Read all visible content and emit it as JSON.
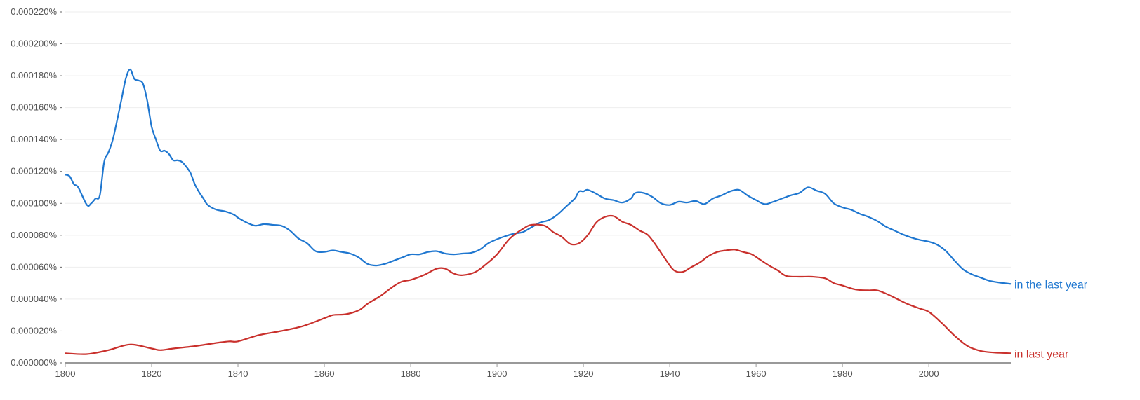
{
  "chart_data": {
    "type": "line",
    "title": "",
    "xlabel": "",
    "ylabel": "",
    "xlim": [
      1800,
      2019
    ],
    "ylim": [
      0,
      0.00022
    ],
    "grid": true,
    "legend_placement": "right, at line ends",
    "x_ticks": [
      "1800",
      "1820",
      "1840",
      "1860",
      "1880",
      "1900",
      "1920",
      "1940",
      "1960",
      "1980",
      "2000"
    ],
    "y_ticks": [
      "0.000000%",
      "0.000020%",
      "0.000040%",
      "0.000060%",
      "0.000080%",
      "0.000100%",
      "0.000120%",
      "0.000140%",
      "0.000160%",
      "0.000180%",
      "0.000200%",
      "0.000220%"
    ],
    "series": [
      {
        "name": "in the last year",
        "color": "#1f77d0",
        "points": [
          [
            1800,
            0.000118
          ],
          [
            1801,
            0.000117
          ],
          [
            1802,
            0.000112
          ],
          [
            1803,
            0.00011
          ],
          [
            1805,
            9.9e-05
          ],
          [
            1806,
            0.0001
          ],
          [
            1807,
            0.000103
          ],
          [
            1808,
            0.000105
          ],
          [
            1809,
            0.000126
          ],
          [
            1810,
            0.000132
          ],
          [
            1811,
            0.00014
          ],
          [
            1812,
            0.000152
          ],
          [
            1813,
            0.000165
          ],
          [
            1814,
            0.000178
          ],
          [
            1815,
            0.000184
          ],
          [
            1816,
            0.000178
          ],
          [
            1817,
            0.000177
          ],
          [
            1818,
            0.000175
          ],
          [
            1819,
            0.000164
          ],
          [
            1820,
            0.000148
          ],
          [
            1821,
            0.00014
          ],
          [
            1822,
            0.000133
          ],
          [
            1823,
            0.000133
          ],
          [
            1824,
            0.000131
          ],
          [
            1825,
            0.000127
          ],
          [
            1826,
            0.000127
          ],
          [
            1827,
            0.000126
          ],
          [
            1828,
            0.000123
          ],
          [
            1829,
            0.000119
          ],
          [
            1830,
            0.000112
          ],
          [
            1831,
            0.000107
          ],
          [
            1832,
            0.000103
          ],
          [
            1833,
            9.9e-05
          ],
          [
            1835,
            9.6e-05
          ],
          [
            1837,
            9.5e-05
          ],
          [
            1839,
            9.3e-05
          ],
          [
            1840,
            9.1e-05
          ],
          [
            1842,
            8.8e-05
          ],
          [
            1844,
            8.6e-05
          ],
          [
            1846,
            8.7e-05
          ],
          [
            1848,
            8.65e-05
          ],
          [
            1850,
            8.6e-05
          ],
          [
            1852,
            8.3e-05
          ],
          [
            1854,
            7.8e-05
          ],
          [
            1856,
            7.5e-05
          ],
          [
            1858,
            7e-05
          ],
          [
            1860,
            6.95e-05
          ],
          [
            1862,
            7.05e-05
          ],
          [
            1864,
            6.95e-05
          ],
          [
            1866,
            6.85e-05
          ],
          [
            1868,
            6.6e-05
          ],
          [
            1870,
            6.2e-05
          ],
          [
            1872,
            6.1e-05
          ],
          [
            1874,
            6.2e-05
          ],
          [
            1876,
            6.4e-05
          ],
          [
            1878,
            6.6e-05
          ],
          [
            1880,
            6.8e-05
          ],
          [
            1882,
            6.8e-05
          ],
          [
            1884,
            6.95e-05
          ],
          [
            1886,
            7e-05
          ],
          [
            1888,
            6.85e-05
          ],
          [
            1890,
            6.8e-05
          ],
          [
            1892,
            6.85e-05
          ],
          [
            1894,
            6.9e-05
          ],
          [
            1896,
            7.1e-05
          ],
          [
            1898,
            7.5e-05
          ],
          [
            1900,
            7.75e-05
          ],
          [
            1902,
            7.95e-05
          ],
          [
            1904,
            8.1e-05
          ],
          [
            1906,
            8.2e-05
          ],
          [
            1908,
            8.5e-05
          ],
          [
            1910,
            8.8e-05
          ],
          [
            1912,
            8.95e-05
          ],
          [
            1914,
            9.3e-05
          ],
          [
            1916,
            9.8e-05
          ],
          [
            1918,
            0.000103
          ],
          [
            1919,
            0.0001075
          ],
          [
            1920,
            0.0001075
          ],
          [
            1921,
            0.0001085
          ],
          [
            1923,
            0.000106
          ],
          [
            1925,
            0.000103
          ],
          [
            1927,
            0.000102
          ],
          [
            1929,
            0.0001005
          ],
          [
            1931,
            0.000103
          ],
          [
            1932,
            0.0001065
          ],
          [
            1934,
            0.0001065
          ],
          [
            1936,
            0.000104
          ],
          [
            1938,
            0.0001
          ],
          [
            1940,
            9.9e-05
          ],
          [
            1942,
            0.000101
          ],
          [
            1944,
            0.0001005
          ],
          [
            1946,
            0.0001015
          ],
          [
            1948,
            9.95e-05
          ],
          [
            1950,
            0.000103
          ],
          [
            1952,
            0.000105
          ],
          [
            1954,
            0.0001075
          ],
          [
            1956,
            0.0001085
          ],
          [
            1958,
            0.000105
          ],
          [
            1960,
            0.000102
          ],
          [
            1962,
            9.95e-05
          ],
          [
            1964,
            0.000101
          ],
          [
            1966,
            0.000103
          ],
          [
            1968,
            0.000105
          ],
          [
            1970,
            0.0001065
          ],
          [
            1972,
            0.00011
          ],
          [
            1974,
            0.000108
          ],
          [
            1976,
            0.000106
          ],
          [
            1978,
            0.0001
          ],
          [
            1980,
            9.75e-05
          ],
          [
            1982,
            9.6e-05
          ],
          [
            1984,
            9.35e-05
          ],
          [
            1986,
            9.15e-05
          ],
          [
            1988,
            8.9e-05
          ],
          [
            1990,
            8.55e-05
          ],
          [
            1992,
            8.3e-05
          ],
          [
            1994,
            8.05e-05
          ],
          [
            1996,
            7.85e-05
          ],
          [
            1998,
            7.7e-05
          ],
          [
            2000,
            7.6e-05
          ],
          [
            2002,
            7.4e-05
          ],
          [
            2004,
            7e-05
          ],
          [
            2006,
            6.4e-05
          ],
          [
            2008,
            5.85e-05
          ],
          [
            2010,
            5.55e-05
          ],
          [
            2012,
            5.35e-05
          ],
          [
            2014,
            5.15e-05
          ],
          [
            2016,
            5.05e-05
          ],
          [
            2019,
            4.95e-05
          ]
        ]
      },
      {
        "name": "in last year",
        "color": "#c9302c",
        "points": [
          [
            1800,
            6e-06
          ],
          [
            1805,
            5.5e-06
          ],
          [
            1810,
            8e-06
          ],
          [
            1815,
            1.15e-05
          ],
          [
            1820,
            9e-06
          ],
          [
            1822,
            8e-06
          ],
          [
            1825,
            9e-06
          ],
          [
            1830,
            1.05e-05
          ],
          [
            1835,
            1.25e-05
          ],
          [
            1838,
            1.35e-05
          ],
          [
            1840,
            1.35e-05
          ],
          [
            1845,
            1.75e-05
          ],
          [
            1850,
            2e-05
          ],
          [
            1855,
            2.3e-05
          ],
          [
            1860,
            2.8e-05
          ],
          [
            1862,
            3e-05
          ],
          [
            1865,
            3.05e-05
          ],
          [
            1868,
            3.3e-05
          ],
          [
            1870,
            3.7e-05
          ],
          [
            1873,
            4.2e-05
          ],
          [
            1876,
            4.8e-05
          ],
          [
            1878,
            5.1e-05
          ],
          [
            1880,
            5.2e-05
          ],
          [
            1883,
            5.5e-05
          ],
          [
            1886,
            5.9e-05
          ],
          [
            1888,
            5.9e-05
          ],
          [
            1890,
            5.6e-05
          ],
          [
            1892,
            5.5e-05
          ],
          [
            1895,
            5.7e-05
          ],
          [
            1898,
            6.3e-05
          ],
          [
            1900,
            6.8e-05
          ],
          [
            1903,
            7.8e-05
          ],
          [
            1906,
            8.4e-05
          ],
          [
            1908,
            8.65e-05
          ],
          [
            1911,
            8.6e-05
          ],
          [
            1913,
            8.2e-05
          ],
          [
            1915,
            7.9e-05
          ],
          [
            1917,
            7.45e-05
          ],
          [
            1919,
            7.5e-05
          ],
          [
            1921,
            8e-05
          ],
          [
            1923,
            8.8e-05
          ],
          [
            1925,
            9.15e-05
          ],
          [
            1927,
            9.2e-05
          ],
          [
            1929,
            8.85e-05
          ],
          [
            1931,
            8.65e-05
          ],
          [
            1933,
            8.3e-05
          ],
          [
            1935,
            8e-05
          ],
          [
            1937,
            7.3e-05
          ],
          [
            1939,
            6.5e-05
          ],
          [
            1941,
            5.8e-05
          ],
          [
            1943,
            5.7e-05
          ],
          [
            1945,
            6e-05
          ],
          [
            1947,
            6.3e-05
          ],
          [
            1949,
            6.7e-05
          ],
          [
            1951,
            6.95e-05
          ],
          [
            1953,
            7.05e-05
          ],
          [
            1955,
            7.1e-05
          ],
          [
            1957,
            6.95e-05
          ],
          [
            1959,
            6.8e-05
          ],
          [
            1961,
            6.45e-05
          ],
          [
            1963,
            6.1e-05
          ],
          [
            1965,
            5.8e-05
          ],
          [
            1967,
            5.45e-05
          ],
          [
            1970,
            5.4e-05
          ],
          [
            1973,
            5.4e-05
          ],
          [
            1976,
            5.3e-05
          ],
          [
            1978,
            5e-05
          ],
          [
            1980,
            4.85e-05
          ],
          [
            1983,
            4.6e-05
          ],
          [
            1986,
            4.55e-05
          ],
          [
            1988,
            4.55e-05
          ],
          [
            1990,
            4.35e-05
          ],
          [
            1992,
            4.1e-05
          ],
          [
            1995,
            3.7e-05
          ],
          [
            1998,
            3.4e-05
          ],
          [
            2000,
            3.2e-05
          ],
          [
            2003,
            2.5e-05
          ],
          [
            2006,
            1.7e-05
          ],
          [
            2009,
            1.05e-05
          ],
          [
            2012,
            7.5e-06
          ],
          [
            2015,
            6.5e-06
          ],
          [
            2019,
            6e-06
          ]
        ]
      }
    ]
  }
}
